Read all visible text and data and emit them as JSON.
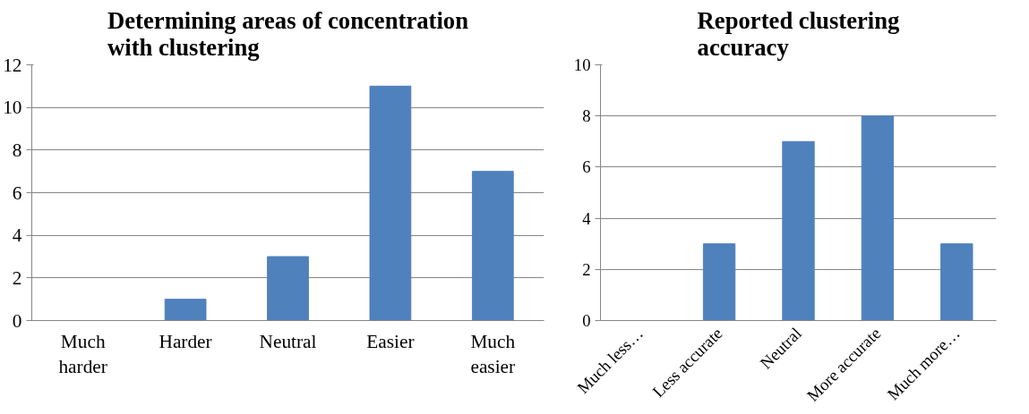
{
  "chart_data": [
    {
      "type": "bar",
      "title": "Determining areas of concentration with clustering",
      "categories": [
        "Much harder",
        "Harder",
        "Neutral",
        "Easier",
        "Much easier"
      ],
      "values": [
        0,
        1,
        3,
        11,
        7
      ],
      "color": "#4f81bd",
      "ylim": [
        0,
        12
      ],
      "yticks": [
        0,
        2,
        4,
        6,
        8,
        10,
        12
      ],
      "grid": "y"
    },
    {
      "type": "bar",
      "title": "Reported clustering accuracy",
      "categories": [
        "Much less…",
        "Less accurate",
        "Neutral",
        "More accurate",
        "Much more…"
      ],
      "values": [
        0,
        3,
        7,
        8,
        3
      ],
      "color": "#4f81bd",
      "ylim": [
        0,
        10
      ],
      "yticks": [
        0,
        2,
        4,
        6,
        8,
        10
      ],
      "grid": "y"
    }
  ]
}
